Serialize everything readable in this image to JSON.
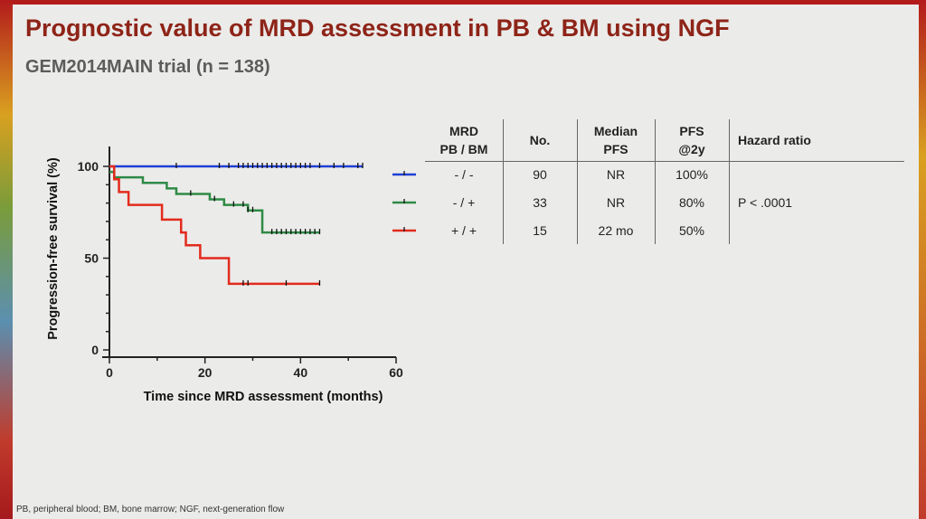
{
  "slide": {
    "title": "Prognostic value of MRD assessment in PB & BM using NGF",
    "subtitle": "GEM2014MAIN trial (n = 138)",
    "footnote": "PB, peripheral blood; BM, bone marrow; NGF, next-generation flow"
  },
  "chart_data": {
    "type": "line",
    "subtype": "kaplan-meier",
    "xlabel": "Time since MRD assessment (months)",
    "ylabel": "Progression-free survival (%)",
    "xlim": [
      0,
      60
    ],
    "ylim": [
      0,
      100
    ],
    "xticks": [
      0,
      20,
      40,
      60
    ],
    "yticks": [
      0,
      50,
      100
    ],
    "grid": false,
    "series": [
      {
        "name": "- / -",
        "color": "#1f3fd6",
        "steps": [
          [
            0,
            100
          ],
          [
            53,
            100
          ]
        ],
        "censored": [
          14,
          23,
          25,
          27,
          28,
          29,
          30,
          31,
          32,
          33,
          34,
          35,
          36,
          37,
          38,
          39,
          40,
          41,
          42,
          44,
          47,
          49,
          52,
          53
        ]
      },
      {
        "name": "- / +",
        "color": "#2e8b46",
        "steps": [
          [
            0,
            97
          ],
          [
            1,
            97
          ],
          [
            1,
            94
          ],
          [
            7,
            94
          ],
          [
            7,
            91
          ],
          [
            12,
            91
          ],
          [
            12,
            88
          ],
          [
            14,
            88
          ],
          [
            14,
            85
          ],
          [
            21,
            85
          ],
          [
            21,
            82
          ],
          [
            24,
            82
          ],
          [
            24,
            79
          ],
          [
            29,
            79
          ],
          [
            29,
            76
          ],
          [
            32,
            76
          ],
          [
            32,
            64
          ],
          [
            44,
            64
          ]
        ],
        "censored": [
          17,
          22,
          26,
          28,
          29,
          30,
          34,
          35,
          36,
          37,
          38,
          39,
          40,
          41,
          42,
          43,
          44
        ]
      },
      {
        "name": "+ / +",
        "color": "#e22b1c",
        "steps": [
          [
            0,
            100
          ],
          [
            1,
            100
          ],
          [
            1,
            93
          ],
          [
            2,
            93
          ],
          [
            2,
            86
          ],
          [
            4,
            86
          ],
          [
            4,
            79
          ],
          [
            11,
            79
          ],
          [
            11,
            71
          ],
          [
            15,
            71
          ],
          [
            15,
            64
          ],
          [
            16,
            64
          ],
          [
            16,
            57
          ],
          [
            19,
            57
          ],
          [
            19,
            50
          ],
          [
            25,
            50
          ],
          [
            25,
            36
          ],
          [
            44,
            36
          ]
        ],
        "censored": [
          28,
          29,
          37,
          44
        ]
      }
    ]
  },
  "table": {
    "headers": {
      "mrd": [
        "MRD",
        "PB / BM"
      ],
      "no": [
        "No."
      ],
      "median": [
        "Median",
        "PFS"
      ],
      "pfs2y": [
        "PFS",
        "@2y"
      ],
      "hr": [
        "Hazard ratio"
      ]
    },
    "rows": [
      {
        "group": "- / -",
        "no": "90",
        "median": "NR",
        "pfs2y": "100%"
      },
      {
        "group": "- / +",
        "no": "33",
        "median": "NR",
        "pfs2y": "80%"
      },
      {
        "group": "+ / +",
        "no": "15",
        "median": "22 mo",
        "pfs2y": "50%"
      }
    ],
    "hazard_ratio": "P < .0001"
  }
}
